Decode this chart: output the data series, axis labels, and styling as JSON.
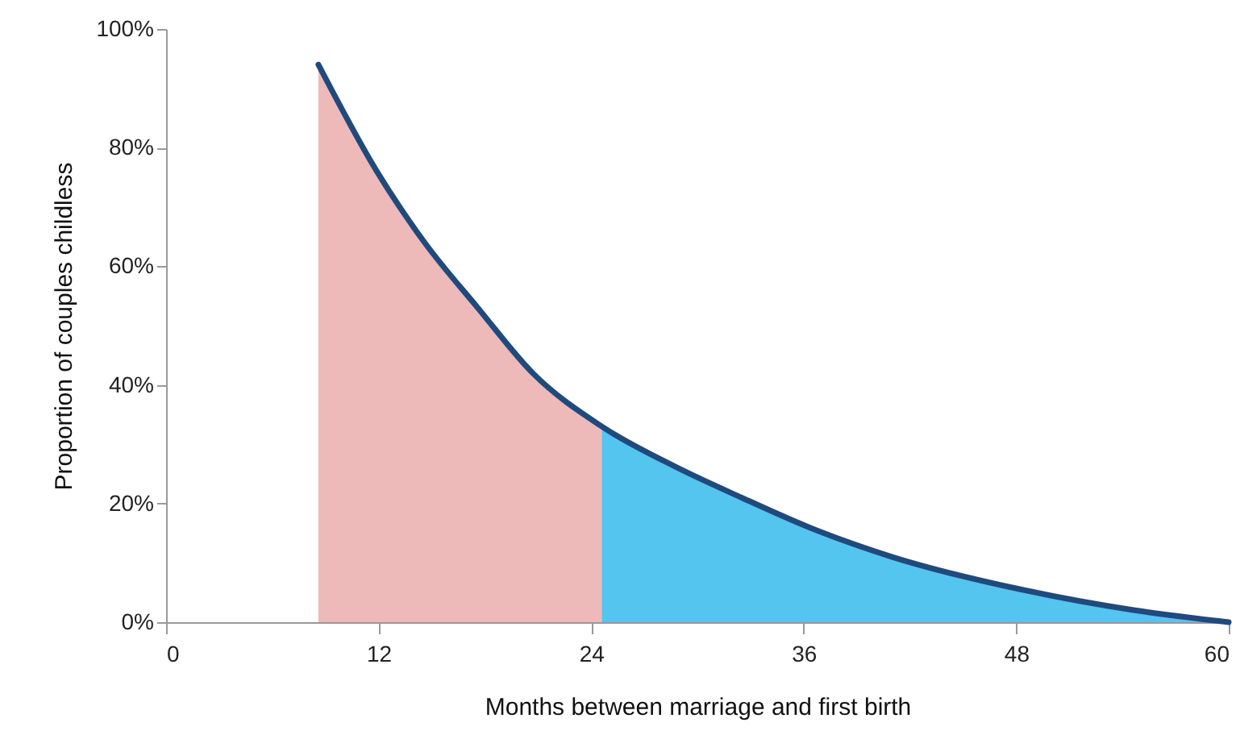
{
  "chart_data": {
    "type": "line",
    "xlabel": "Months between marriage and first birth",
    "ylabel": "Proportion of couples childless",
    "xlim": [
      0,
      60
    ],
    "xticks": [
      0,
      12,
      24,
      36,
      48,
      60
    ],
    "ylim": [
      0,
      100
    ],
    "yticks": [
      {
        "value": 0,
        "label": "0%"
      },
      {
        "value": 20,
        "label": "20%"
      },
      {
        "value": 40,
        "label": "40%"
      },
      {
        "value": 60,
        "label": "60%"
      },
      {
        "value": 80,
        "label": "80%"
      },
      {
        "value": 100,
        "label": "100%"
      }
    ],
    "grid": false,
    "series": [
      {
        "type": "area",
        "color": "#e8a2a2",
        "x": [
          8.6,
          11.9,
          14.6,
          17.6,
          20.7,
          24.6
        ],
        "values": [
          94,
          76,
          64,
          53,
          42,
          33
        ]
      },
      {
        "type": "area",
        "color": "#1ab2e8",
        "x": [
          24.6,
          28.9,
          32.5,
          36.3,
          41.0,
          48.3,
          54.7,
          60
        ],
        "values": [
          33,
          26,
          21,
          16,
          11,
          5.5,
          2,
          0
        ]
      },
      {
        "color": "#1f4a7e",
        "x": [
          8.6,
          11.9,
          14.6,
          17.6,
          20.7,
          24.6,
          28.9,
          32.5,
          36.3,
          41.0,
          48.3,
          54.7,
          60
        ],
        "values": [
          94,
          76,
          64,
          53,
          42,
          33,
          26,
          21,
          16,
          11,
          5.5,
          2,
          0
        ]
      }
    ]
  }
}
